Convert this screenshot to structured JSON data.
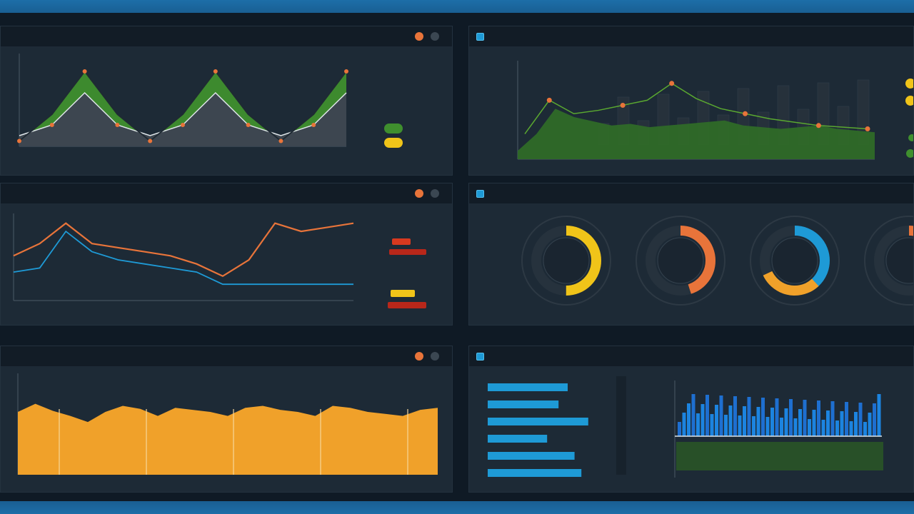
{
  "panels": [
    {
      "id": "p1",
      "title": "",
      "show_icon": false
    },
    {
      "id": "p2",
      "title": "",
      "show_icon": true
    },
    {
      "id": "p3",
      "title": "",
      "show_icon": false
    },
    {
      "id": "p4",
      "title": "",
      "show_icon": true
    },
    {
      "id": "p5",
      "title": "",
      "show_icon": false
    },
    {
      "id": "p6",
      "title": "",
      "show_icon": true
    }
  ],
  "colors": {
    "green": "#3f8f2e",
    "orange": "#e8743a",
    "blue": "#1e9ad6",
    "yellow": "#f0c419",
    "red": "#d8391f",
    "amber": "#f0a12a"
  },
  "chart_data": [
    {
      "type": "area",
      "panel": "p1",
      "x": [
        1,
        2,
        3,
        4,
        5,
        6,
        7,
        8,
        9,
        10,
        11
      ],
      "series": [
        {
          "values": [
            2,
            4,
            10,
            4,
            2,
            4,
            10,
            4,
            2,
            4,
            10
          ]
        },
        {
          "values": [
            1,
            6,
            14,
            6,
            1,
            6,
            14,
            6,
            1,
            6,
            14
          ]
        }
      ],
      "ylim": [
        0,
        16
      ],
      "legend": [
        {
          "color": "#3f8f2e"
        },
        {
          "color": "#f0c419"
        }
      ]
    },
    {
      "type": "area",
      "panel": "p2",
      "series": [
        {
          "values": [
            10,
            30,
            60,
            50,
            45,
            40,
            42,
            38,
            40,
            42,
            44,
            46,
            40,
            38,
            36,
            38,
            40,
            36,
            34,
            32
          ]
        },
        {
          "values": [
            30,
            70,
            54,
            58,
            64,
            70,
            90,
            72,
            60,
            54,
            48,
            44,
            40,
            38,
            36
          ]
        }
      ],
      "ylim": [
        0,
        100
      ]
    },
    {
      "type": "line",
      "panel": "p3",
      "series": [
        {
          "color": "#e8743a",
          "values": [
            55,
            70,
            95,
            70,
            65,
            60,
            55,
            45,
            30,
            50,
            95,
            85,
            90,
            95
          ]
        },
        {
          "color": "#1e9ad6",
          "values": [
            35,
            40,
            85,
            60,
            50,
            45,
            40,
            35,
            20,
            20,
            20,
            20,
            20,
            20
          ]
        }
      ],
      "ylim": [
        0,
        100
      ],
      "legend": [
        {
          "color": "#d8391f"
        },
        {
          "color": "#f0c419"
        }
      ]
    },
    {
      "type": "pie",
      "panel": "p4",
      "gauges": [
        {
          "value": 50,
          "color": "#f0c419"
        },
        {
          "value": 45,
          "color": "#e8743a"
        },
        {
          "value": 38,
          "color": "#1e9ad6",
          "secondary": 30,
          "secondary_color": "#f0a12a"
        },
        {
          "value": 20,
          "color": "#e8743a"
        }
      ]
    },
    {
      "type": "area",
      "panel": "p5",
      "values": [
        62,
        70,
        63,
        58,
        52,
        62,
        68,
        65,
        58,
        66,
        64,
        62,
        58,
        66,
        68,
        64,
        62,
        58,
        68,
        66,
        62,
        60,
        58,
        64,
        66
      ],
      "ylim": [
        0,
        100
      ],
      "color": "#f0a12a"
    },
    {
      "type": "bar",
      "panel": "p6",
      "values": [
        70,
        62,
        88,
        52,
        76,
        82
      ],
      "color": "#1e9ad6"
    }
  ]
}
